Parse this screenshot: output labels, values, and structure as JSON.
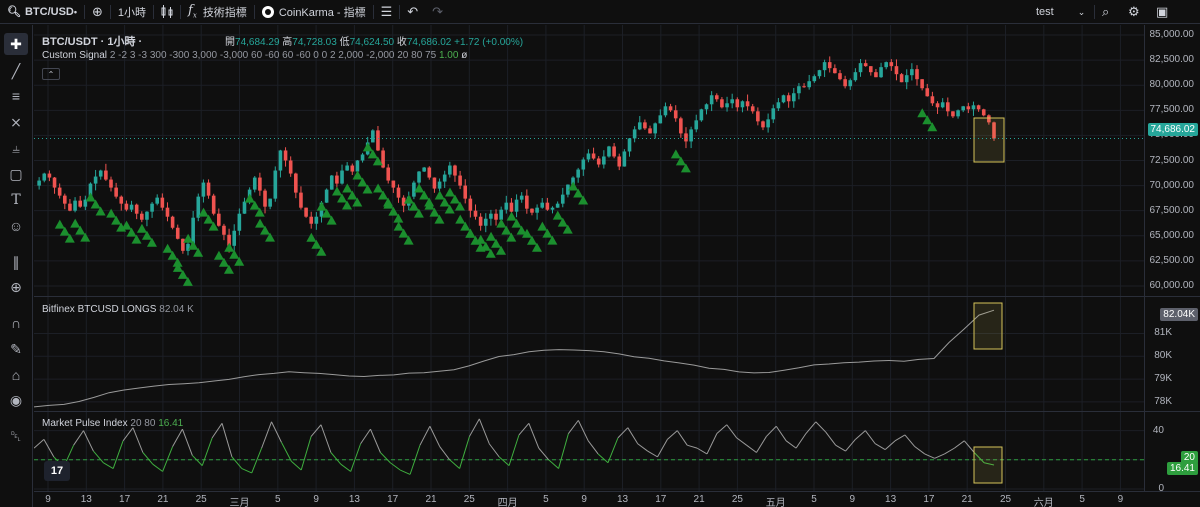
{
  "toolbar": {
    "symbol": "BTC/USD",
    "interval": "1小時",
    "indicators_label": "技術指標",
    "coinkarma_label": "CoinKarma - 指標",
    "layout_name": "test",
    "icons": [
      "search-icon",
      "add-symbol-icon",
      "candles-icon",
      "fx-icon",
      "coinkarma-icon",
      "list-icon",
      "undo-icon",
      "redo-icon",
      "chevron-down-icon",
      "quick-search-icon",
      "settings-icon",
      "camera-icon"
    ]
  },
  "left_tools": [
    "crosshair-icon",
    "trendline-icon",
    "fib-icon",
    "pattern-icon",
    "projection-icon",
    "shapes-icon",
    "text-icon",
    "emoji-icon",
    "ruler-icon",
    "zoom-icon",
    "magnet-icon",
    "lock-draw-icon",
    "lock-icon",
    "eye-icon",
    "trash-icon"
  ],
  "main_pane": {
    "title": "BTC/USDT · 1小時 ·",
    "ohlc": {
      "open_label": "開",
      "open": "74,684.29",
      "high_label": "高",
      "high": "74,728.03",
      "low_label": "低",
      "low": "74,624.50",
      "close_label": "收",
      "close": "74,686.02",
      "change": "+1.72 (+0.00%)"
    },
    "indicator_name": "Custom Signal",
    "indicator_params": "2 -2 3 -3 300 -300 3,000 -3,000 60 -60 60 -60 0 0 2 2,000 -2,000 20 80 75",
    "indicator_value": "1.00",
    "indicator_extra": "ø",
    "axis_ticks": [
      "85,000.00",
      "82,500.00",
      "80,000.00",
      "77,500.00",
      "75,000.00",
      "72,500.00",
      "70,000.00",
      "67,500.00",
      "65,000.00",
      "62,500.00",
      "60,000.00"
    ],
    "last_price": "74,686.02"
  },
  "longs_pane": {
    "title": "Bitfinex BTCUSD LONGS",
    "value": "82.04 K",
    "axis_ticks": [
      "81K",
      "80K",
      "79K",
      "78K"
    ],
    "last_value": "82.04K"
  },
  "pulse_pane": {
    "title": "Market Pulse Index",
    "params": "20 80",
    "value": "16.41",
    "axis_ticks": [
      "40",
      "20",
      "0"
    ],
    "level_tag": "20",
    "last_value": "16.41"
  },
  "time_axis": [
    "9",
    "13",
    "17",
    "21",
    "25",
    "三月",
    "5",
    "9",
    "13",
    "17",
    "21",
    "25",
    "四月",
    "5",
    "9",
    "13",
    "17",
    "21",
    "25",
    "五月",
    "5",
    "9",
    "13",
    "17",
    "21",
    "25",
    "六月",
    "5",
    "9"
  ],
  "colors": {
    "background": "#0f0f0f",
    "grid": "#1c1f26",
    "up": "#26a69a",
    "down": "#ef5350",
    "signal": "#1b8f2e",
    "longs_line": "#9a9a9a",
    "highlight": "#d4c35a",
    "price_tag": "#26a69a",
    "dashed_level": "#2e9e3e"
  },
  "chart_data": {
    "type": "line",
    "price_series": [
      70000,
      70500,
      71200,
      70800,
      69800,
      69000,
      68200,
      67500,
      68500,
      67900,
      68600,
      70200,
      70900,
      71500,
      70600,
      69800,
      68900,
      68200,
      67600,
      68100,
      67200,
      66600,
      67400,
      68200,
      68800,
      67800,
      66900,
      65800,
      64700,
      63500,
      64200,
      66800,
      68900,
      70300,
      69000,
      67200,
      66000,
      65100,
      64000,
      65500,
      67200,
      68400,
      69600,
      70800,
      69500,
      67900,
      68700,
      71500,
      73500,
      72500,
      71200,
      69300,
      67800,
      66900,
      66200,
      66900,
      68300,
      69600,
      71000,
      70200,
      71500,
      72000,
      71400,
      72500,
      73100,
      74300,
      75500,
      73500,
      71800,
      70500,
      69800,
      68800,
      68000,
      68900,
      70300,
      71400,
      71800,
      70800,
      69700,
      70400,
      71100,
      72000,
      71000,
      70000,
      68700,
      67500,
      66900,
      66000,
      66700,
      67200,
      66600,
      67600,
      68300,
      67400,
      68600,
      69000,
      67700,
      67300,
      67800,
      68300,
      67600,
      67800,
      68200,
      69100,
      70100,
      70800,
      71600,
      72600,
      73200,
      72700,
      72100,
      72900,
      73900,
      72900,
      71900,
      73400,
      74700,
      75600,
      76300,
      75700,
      75200,
      76200,
      77000,
      77900,
      77500,
      76700,
      75200,
      74400,
      75600,
      76500,
      77600,
      78100,
      79000,
      78600,
      77800,
      78200,
      78600,
      77800,
      78400,
      77900,
      77400,
      76400,
      75800,
      76600,
      77700,
      78300,
      79000,
      78400,
      79200,
      79900,
      79800,
      80400,
      80900,
      81500,
      82300,
      81700,
      81200,
      80600,
      79900,
      80500,
      81300,
      82200,
      81900,
      81300,
      80800,
      81800,
      82300,
      81900,
      81100,
      80300,
      81000,
      81600,
      80600,
      79700,
      78900,
      78200,
      77800,
      78300,
      77400,
      76900,
      77500,
      77900,
      77600,
      78000,
      77600,
      77000,
      76300,
      74686
    ],
    "signal_markers_x_index": [
      6,
      9,
      12,
      16,
      19,
      22,
      27,
      29,
      31,
      34,
      37,
      39,
      43,
      45,
      55,
      57,
      60,
      62,
      64,
      66,
      68,
      70,
      72,
      74,
      76,
      78,
      80,
      82,
      84,
      86,
      88,
      90,
      92,
      94,
      97,
      100,
      103,
      106,
      126,
      174
    ],
    "longs_series": [
      77.8,
      77.85,
      77.9,
      78.0,
      78.2,
      78.4,
      78.5,
      78.6,
      78.7,
      78.75,
      78.8,
      78.85,
      78.9,
      79.0,
      79.1,
      79.2,
      79.25,
      79.3,
      79.3,
      79.25,
      79.2,
      79.15,
      79.1,
      79.15,
      79.2,
      79.25,
      79.3,
      79.35,
      79.4,
      79.6,
      79.8,
      80.0,
      80.1,
      80.2,
      80.25,
      80.3,
      80.3,
      80.25,
      80.2,
      80.1,
      80.0,
      79.9,
      79.8,
      79.7,
      79.6,
      79.5,
      79.4,
      79.3,
      79.25,
      79.3,
      79.4,
      79.5,
      79.6,
      79.65,
      79.7,
      79.75,
      79.8,
      79.8,
      79.8,
      79.85,
      79.9,
      80.6,
      81.2,
      81.8,
      82.04
    ],
    "pulse_series": [
      28,
      34,
      22,
      15,
      30,
      40,
      26,
      18,
      14,
      33,
      42,
      25,
      17,
      12,
      29,
      41,
      23,
      16,
      35,
      45,
      22,
      14,
      11,
      28,
      46,
      32,
      19,
      13,
      36,
      44,
      25,
      17,
      12,
      31,
      41,
      25,
      18,
      13,
      10,
      30,
      43,
      29,
      20,
      14,
      36,
      48,
      31,
      22,
      16,
      37,
      45,
      28,
      20,
      14,
      38,
      47,
      33,
      24,
      18,
      35,
      42,
      31,
      26,
      22,
      34,
      40,
      30,
      28,
      24,
      38,
      44,
      35,
      30,
      25,
      36,
      43,
      33,
      28,
      38,
      46,
      39,
      30,
      26,
      34,
      40,
      31,
      27,
      33,
      37,
      29,
      24,
      21,
      24,
      28,
      33,
      25,
      18,
      16.41
    ],
    "pulse_levels": [
      20,
      80
    ],
    "ylim_price": [
      59000,
      86000
    ],
    "ylim_longs": [
      77.6,
      82.6
    ],
    "ylim_pulse": [
      0,
      50
    ]
  }
}
